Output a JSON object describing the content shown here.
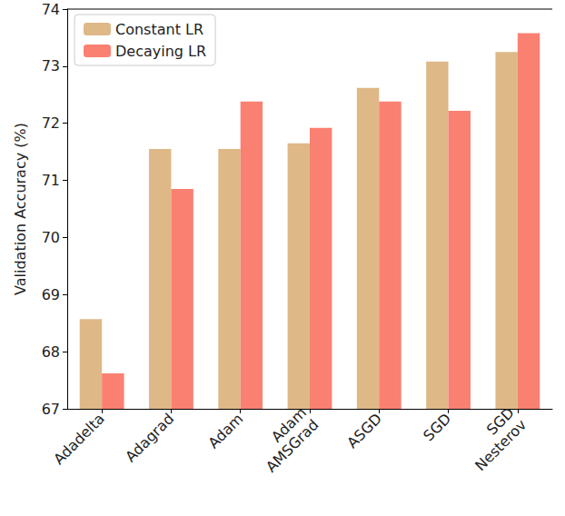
{
  "chart_data": {
    "type": "bar",
    "y_label": "Validation Accuracy (%)",
    "categories": [
      "Adadelta",
      "Adagrad",
      "Adam",
      "Adam\nAMSGrad",
      "ASGD",
      "SGD",
      "SGD\nNesterov"
    ],
    "series": [
      {
        "name": "Constant LR",
        "color": "#deb887",
        "values": [
          68.57,
          71.55,
          71.55,
          71.65,
          72.62,
          73.08,
          73.25
        ]
      },
      {
        "name": "Decaying LR",
        "color": "#fa8072",
        "values": [
          67.62,
          70.85,
          72.38,
          71.92,
          72.38,
          72.22,
          73.58
        ]
      }
    ],
    "ylim": [
      67,
      74
    ],
    "yticks": [
      67,
      68,
      69,
      70,
      71,
      72,
      73,
      74
    ],
    "grid": false,
    "legend": "upper left"
  }
}
